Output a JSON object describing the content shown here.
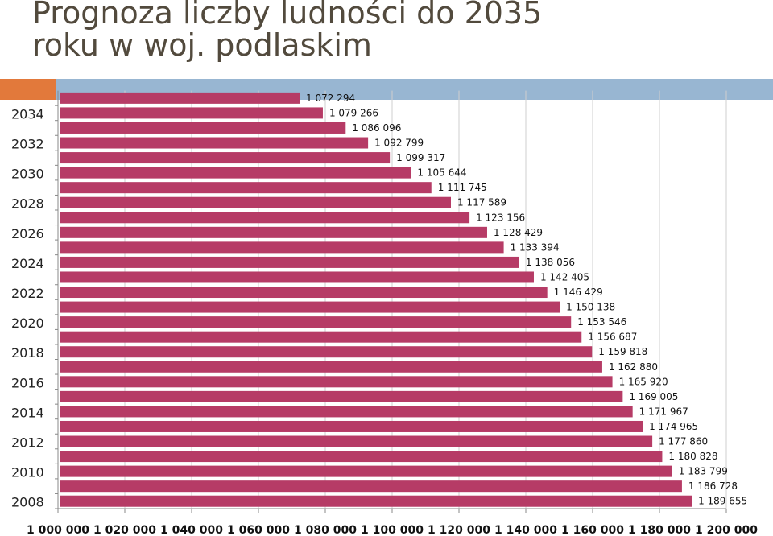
{
  "slide": {
    "title_line1": "Prognoza liczby ludności do 2035",
    "title_line2": "roku w woj. podlaskim"
  },
  "colors": {
    "bar": "#b63b66",
    "accent_orange": "#e2793b",
    "accent_blue": "#98b6d2",
    "title": "#524a3d"
  },
  "chart_data": {
    "type": "bar",
    "orientation": "horizontal",
    "title": "",
    "xlabel": "",
    "ylabel": "",
    "categories": [
      "2008",
      "2009",
      "2010",
      "2011",
      "2012",
      "2013",
      "2014",
      "2015",
      "2016",
      "2017",
      "2018",
      "2019",
      "2020",
      "2021",
      "2022",
      "2023",
      "2024",
      "2025",
      "2026",
      "2027",
      "2028",
      "2029",
      "2030",
      "2031",
      "2032",
      "2033",
      "2034",
      "2035"
    ],
    "category_labels": [
      "2008",
      "",
      "2010",
      "",
      "2012",
      "",
      "2014",
      "",
      "2016",
      "",
      "2018",
      "",
      "2020",
      "",
      "2022",
      "",
      "2024",
      "",
      "2026",
      "",
      "2028",
      "",
      "2030",
      "",
      "2032",
      "",
      "2034",
      ""
    ],
    "values": [
      1189655,
      1186728,
      1183799,
      1180828,
      1177860,
      1174965,
      1171967,
      1169005,
      1165920,
      1162880,
      1159818,
      1156687,
      1153546,
      1150138,
      1146429,
      1142405,
      1138056,
      1133394,
      1128429,
      1123156,
      1117589,
      1111745,
      1105644,
      1099317,
      1092799,
      1086096,
      1079266,
      1072294
    ],
    "value_labels": [
      "1 189 655",
      "1 186 728",
      "1 183 799",
      "1 180 828",
      "1 177 860",
      "1 174 965",
      "1 171 967",
      "1 169 005",
      "1 165 920",
      "1 162 880",
      "1 159 818",
      "1 156 687",
      "1 153 546",
      "1 150 138",
      "1 146 429",
      "1 142 405",
      "1 138 056",
      "1 133 394",
      "1 128 429",
      "1 123 156",
      "1 117 589",
      "1 111 745",
      "1 105 644",
      "1 099 317",
      "1 092 799",
      "1 086 096",
      "1 079 266",
      "1 072 294"
    ],
    "xlim": [
      1000000,
      1200000
    ],
    "x_ticks": [
      1000000,
      1020000,
      1040000,
      1060000,
      1080000,
      1100000,
      1120000,
      1140000,
      1160000,
      1180000,
      1200000
    ],
    "x_tick_labels": [
      "1 000 000",
      "1 020 000",
      "1 040 000",
      "1 060 000",
      "1 080 000",
      "1 100 000",
      "1 120 000",
      "1 140 000",
      "1 160 000",
      "1 180 000",
      "1 200 000"
    ],
    "grid": true
  }
}
